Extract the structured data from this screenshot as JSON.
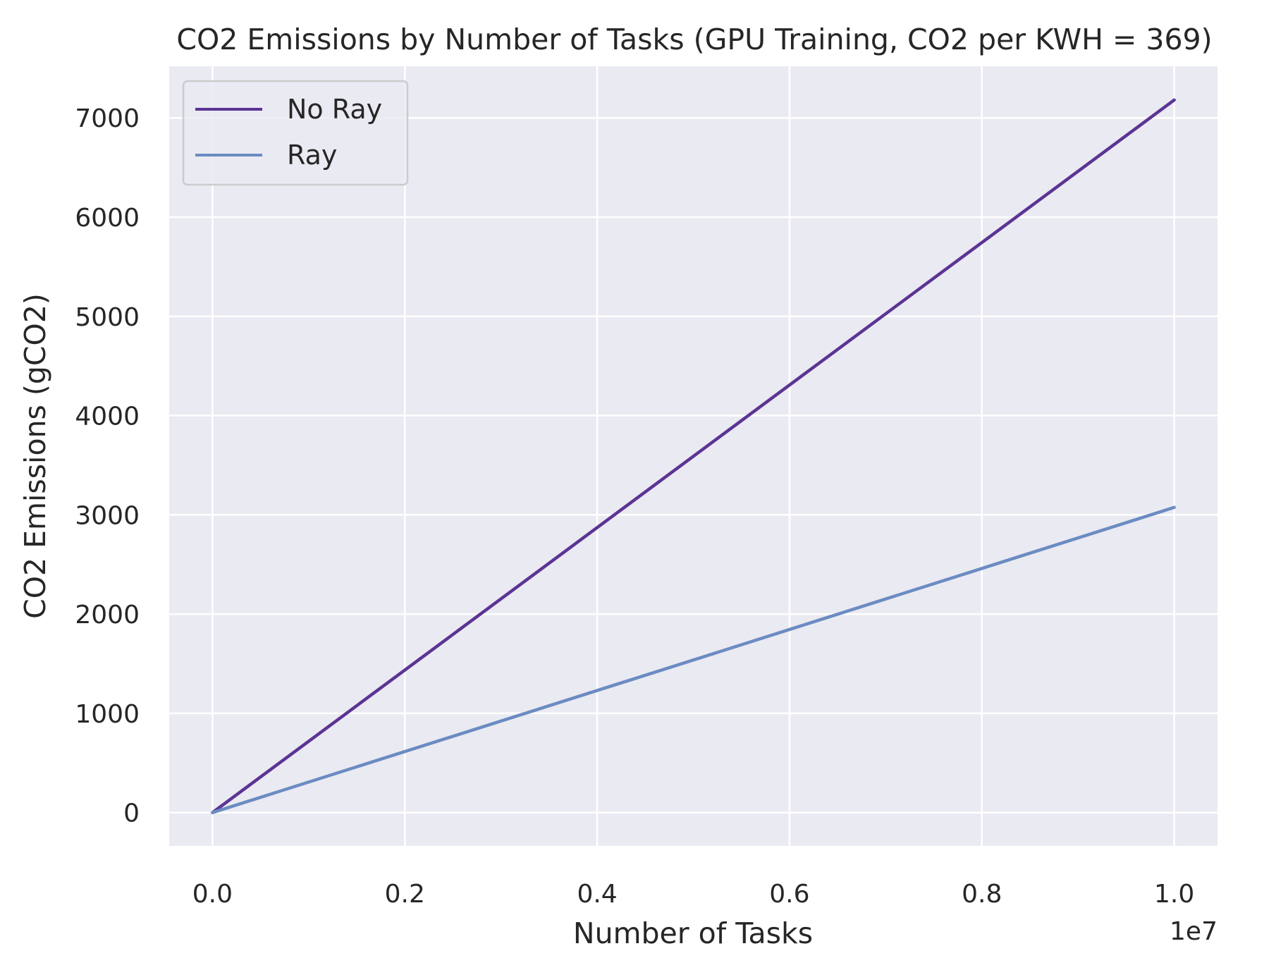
{
  "chart_data": {
    "type": "line",
    "title": "CO2 Emissions by Number of Tasks (GPU Training, CO2 per KWH = 369)",
    "xlabel": "Number of Tasks",
    "ylabel": "CO2 Emissions (gCO2)",
    "x_offset_label": "1e7",
    "xlim": [
      -0.045,
      1.045
    ],
    "ylim": [
      -336,
      7520
    ],
    "x_ticks": [
      0.0,
      0.2,
      0.4,
      0.6,
      0.8,
      1.0
    ],
    "x_tick_labels": [
      "0.0",
      "0.2",
      "0.4",
      "0.6",
      "0.8",
      "1.0"
    ],
    "y_ticks": [
      0,
      1000,
      2000,
      3000,
      4000,
      5000,
      6000,
      7000
    ],
    "y_tick_labels": [
      "0",
      "1000",
      "2000",
      "3000",
      "4000",
      "5000",
      "6000",
      "7000"
    ],
    "grid": true,
    "legend_position": "top-left",
    "series": [
      {
        "name": "No Ray",
        "color": "#5c3494",
        "x": [
          0.0,
          1.0
        ],
        "y": [
          0,
          7180
        ]
      },
      {
        "name": "Ray",
        "color": "#6b8bc2",
        "x": [
          0.0,
          1.0
        ],
        "y": [
          0,
          3075
        ]
      }
    ]
  }
}
